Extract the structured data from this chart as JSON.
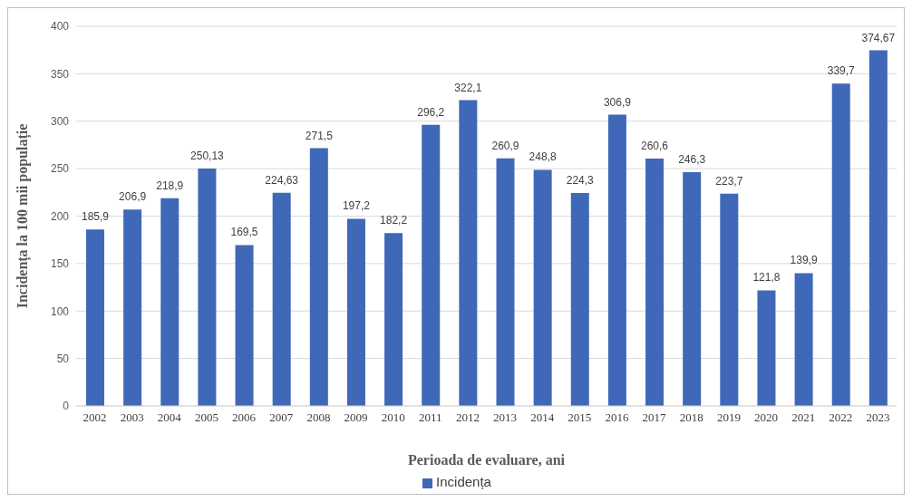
{
  "chart_data": {
    "type": "bar",
    "xlabel": "Perioada de evaluare, ani",
    "ylabel": "Incidența la 100 mii populație",
    "categories": [
      "2002",
      "2003",
      "2004",
      "2005",
      "2006",
      "2007",
      "2008",
      "2009",
      "2010",
      "2011",
      "2012",
      "2013",
      "2014",
      "2015",
      "2016",
      "2017",
      "2018",
      "2019",
      "2020",
      "2021",
      "2022",
      "2023"
    ],
    "series": [
      {
        "name": "Incidența",
        "color": "#3f68b8",
        "values": [
          185.9,
          206.9,
          218.9,
          250.13,
          169.5,
          224.63,
          271.5,
          197.2,
          182.2,
          296.2,
          322.1,
          260.9,
          248.8,
          224.3,
          306.9,
          260.6,
          246.3,
          223.7,
          121.8,
          139.9,
          339.7,
          374.67
        ],
        "value_labels": [
          "185,9",
          "206,9",
          "218,9",
          "250,13",
          "169,5",
          "224,63",
          "271,5",
          "197,2",
          "182,2",
          "296,2",
          "322,1",
          "260,9",
          "248,8",
          "224,3",
          "306,9",
          "260,6",
          "246,3",
          "223,7",
          "121,8",
          "139,9",
          "339,7",
          "374,67"
        ]
      }
    ],
    "ylim": [
      0,
      400
    ],
    "yticks": [
      0,
      50,
      100,
      150,
      200,
      250,
      300,
      350,
      400
    ],
    "grid": "y",
    "legend": "bottom"
  }
}
